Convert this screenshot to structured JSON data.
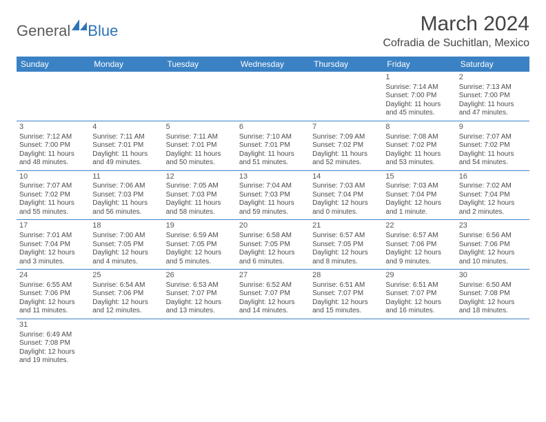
{
  "brand": {
    "general": "General",
    "blue": "Blue"
  },
  "title": "March 2024",
  "location": "Cofradia de Suchitlan, Mexico",
  "colors": {
    "header_bg": "#3b82c4",
    "header_text": "#ffffff",
    "border": "#3b82c4",
    "text": "#4a4a4a",
    "logo_gray": "#5a5a5a",
    "logo_blue": "#2e74b5",
    "background": "#ffffff"
  },
  "dayNames": [
    "Sunday",
    "Monday",
    "Tuesday",
    "Wednesday",
    "Thursday",
    "Friday",
    "Saturday"
  ],
  "weeks": [
    [
      null,
      null,
      null,
      null,
      null,
      {
        "n": "1",
        "sr": "Sunrise: 7:14 AM",
        "ss": "Sunset: 7:00 PM",
        "dl": "Daylight: 11 hours and 45 minutes."
      },
      {
        "n": "2",
        "sr": "Sunrise: 7:13 AM",
        "ss": "Sunset: 7:00 PM",
        "dl": "Daylight: 11 hours and 47 minutes."
      }
    ],
    [
      {
        "n": "3",
        "sr": "Sunrise: 7:12 AM",
        "ss": "Sunset: 7:00 PM",
        "dl": "Daylight: 11 hours and 48 minutes."
      },
      {
        "n": "4",
        "sr": "Sunrise: 7:11 AM",
        "ss": "Sunset: 7:01 PM",
        "dl": "Daylight: 11 hours and 49 minutes."
      },
      {
        "n": "5",
        "sr": "Sunrise: 7:11 AM",
        "ss": "Sunset: 7:01 PM",
        "dl": "Daylight: 11 hours and 50 minutes."
      },
      {
        "n": "6",
        "sr": "Sunrise: 7:10 AM",
        "ss": "Sunset: 7:01 PM",
        "dl": "Daylight: 11 hours and 51 minutes."
      },
      {
        "n": "7",
        "sr": "Sunrise: 7:09 AM",
        "ss": "Sunset: 7:02 PM",
        "dl": "Daylight: 11 hours and 52 minutes."
      },
      {
        "n": "8",
        "sr": "Sunrise: 7:08 AM",
        "ss": "Sunset: 7:02 PM",
        "dl": "Daylight: 11 hours and 53 minutes."
      },
      {
        "n": "9",
        "sr": "Sunrise: 7:07 AM",
        "ss": "Sunset: 7:02 PM",
        "dl": "Daylight: 11 hours and 54 minutes."
      }
    ],
    [
      {
        "n": "10",
        "sr": "Sunrise: 7:07 AM",
        "ss": "Sunset: 7:02 PM",
        "dl": "Daylight: 11 hours and 55 minutes."
      },
      {
        "n": "11",
        "sr": "Sunrise: 7:06 AM",
        "ss": "Sunset: 7:03 PM",
        "dl": "Daylight: 11 hours and 56 minutes."
      },
      {
        "n": "12",
        "sr": "Sunrise: 7:05 AM",
        "ss": "Sunset: 7:03 PM",
        "dl": "Daylight: 11 hours and 58 minutes."
      },
      {
        "n": "13",
        "sr": "Sunrise: 7:04 AM",
        "ss": "Sunset: 7:03 PM",
        "dl": "Daylight: 11 hours and 59 minutes."
      },
      {
        "n": "14",
        "sr": "Sunrise: 7:03 AM",
        "ss": "Sunset: 7:04 PM",
        "dl": "Daylight: 12 hours and 0 minutes."
      },
      {
        "n": "15",
        "sr": "Sunrise: 7:03 AM",
        "ss": "Sunset: 7:04 PM",
        "dl": "Daylight: 12 hours and 1 minute."
      },
      {
        "n": "16",
        "sr": "Sunrise: 7:02 AM",
        "ss": "Sunset: 7:04 PM",
        "dl": "Daylight: 12 hours and 2 minutes."
      }
    ],
    [
      {
        "n": "17",
        "sr": "Sunrise: 7:01 AM",
        "ss": "Sunset: 7:04 PM",
        "dl": "Daylight: 12 hours and 3 minutes."
      },
      {
        "n": "18",
        "sr": "Sunrise: 7:00 AM",
        "ss": "Sunset: 7:05 PM",
        "dl": "Daylight: 12 hours and 4 minutes."
      },
      {
        "n": "19",
        "sr": "Sunrise: 6:59 AM",
        "ss": "Sunset: 7:05 PM",
        "dl": "Daylight: 12 hours and 5 minutes."
      },
      {
        "n": "20",
        "sr": "Sunrise: 6:58 AM",
        "ss": "Sunset: 7:05 PM",
        "dl": "Daylight: 12 hours and 6 minutes."
      },
      {
        "n": "21",
        "sr": "Sunrise: 6:57 AM",
        "ss": "Sunset: 7:05 PM",
        "dl": "Daylight: 12 hours and 8 minutes."
      },
      {
        "n": "22",
        "sr": "Sunrise: 6:57 AM",
        "ss": "Sunset: 7:06 PM",
        "dl": "Daylight: 12 hours and 9 minutes."
      },
      {
        "n": "23",
        "sr": "Sunrise: 6:56 AM",
        "ss": "Sunset: 7:06 PM",
        "dl": "Daylight: 12 hours and 10 minutes."
      }
    ],
    [
      {
        "n": "24",
        "sr": "Sunrise: 6:55 AM",
        "ss": "Sunset: 7:06 PM",
        "dl": "Daylight: 12 hours and 11 minutes."
      },
      {
        "n": "25",
        "sr": "Sunrise: 6:54 AM",
        "ss": "Sunset: 7:06 PM",
        "dl": "Daylight: 12 hours and 12 minutes."
      },
      {
        "n": "26",
        "sr": "Sunrise: 6:53 AM",
        "ss": "Sunset: 7:07 PM",
        "dl": "Daylight: 12 hours and 13 minutes."
      },
      {
        "n": "27",
        "sr": "Sunrise: 6:52 AM",
        "ss": "Sunset: 7:07 PM",
        "dl": "Daylight: 12 hours and 14 minutes."
      },
      {
        "n": "28",
        "sr": "Sunrise: 6:51 AM",
        "ss": "Sunset: 7:07 PM",
        "dl": "Daylight: 12 hours and 15 minutes."
      },
      {
        "n": "29",
        "sr": "Sunrise: 6:51 AM",
        "ss": "Sunset: 7:07 PM",
        "dl": "Daylight: 12 hours and 16 minutes."
      },
      {
        "n": "30",
        "sr": "Sunrise: 6:50 AM",
        "ss": "Sunset: 7:08 PM",
        "dl": "Daylight: 12 hours and 18 minutes."
      }
    ],
    [
      {
        "n": "31",
        "sr": "Sunrise: 6:49 AM",
        "ss": "Sunset: 7:08 PM",
        "dl": "Daylight: 12 hours and 19 minutes."
      },
      null,
      null,
      null,
      null,
      null,
      null
    ]
  ]
}
